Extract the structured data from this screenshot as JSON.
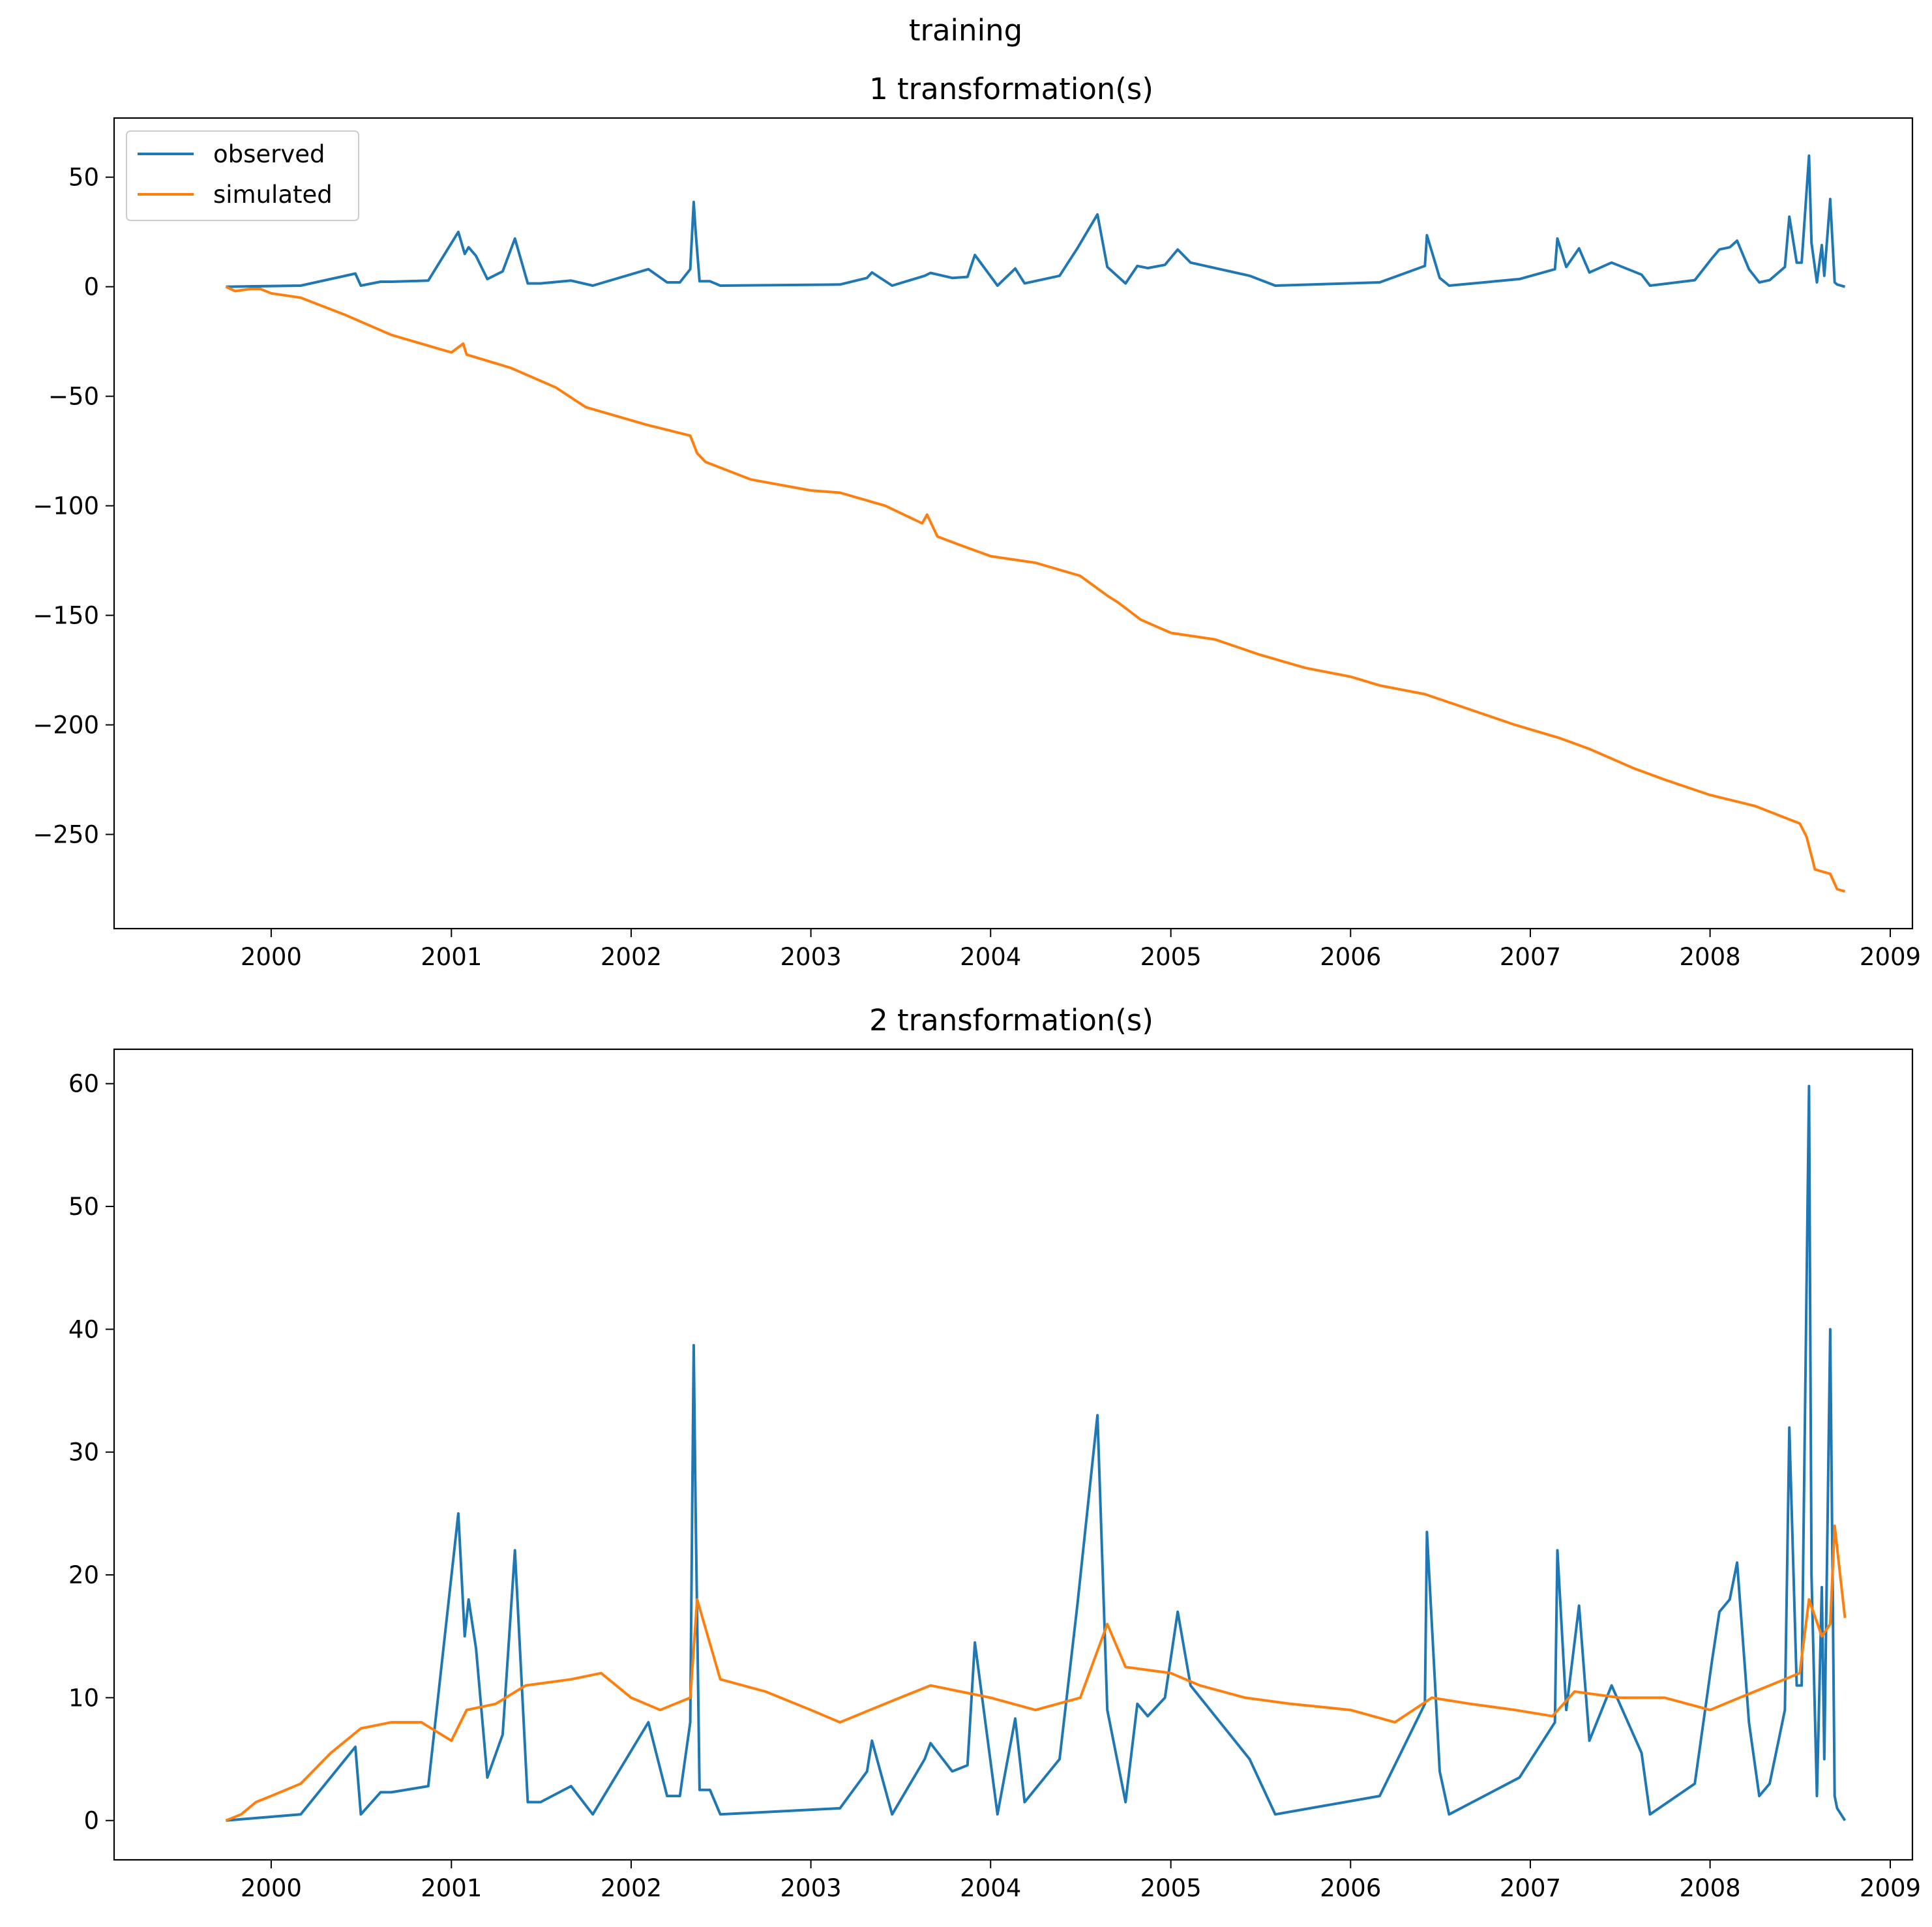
{
  "figure": {
    "suptitle": "training"
  },
  "colors": {
    "observed": "#1f77b4",
    "simulated": "#ff7f0e"
  },
  "chart_data": [
    {
      "type": "line",
      "title": "1 transformation(s)",
      "xlabel": "",
      "ylabel": "",
      "x_ticks": [
        "2000",
        "2001",
        "2002",
        "2003",
        "2004",
        "2005",
        "2006",
        "2007",
        "2008",
        "2009"
      ],
      "y_ticks": [
        "50",
        "0",
        "−50",
        "−100",
        "−150",
        "−200",
        "−250"
      ],
      "xlim": [
        "1999-02-16",
        "2009-02-15"
      ],
      "ylim": [
        -293,
        77
      ],
      "grid": false,
      "legend": {
        "location": "upper-left",
        "entries": [
          "observed",
          "simulated"
        ]
      },
      "series": [
        {
          "name": "observed",
          "color": "#1f77b4",
          "x": [
            "1999-10-01",
            "2000-03-01",
            "2000-06-20",
            "2000-07-01",
            "2000-08-10",
            "2000-09-01",
            "2000-11-15",
            "2001-01-15",
            "2001-01-28",
            "2001-02-05",
            "2001-02-20",
            "2001-03-15",
            "2001-04-15",
            "2001-05-10",
            "2001-06-05",
            "2001-07-01",
            "2001-09-01",
            "2001-10-15",
            "2002-02-05",
            "2002-03-15",
            "2002-04-10",
            "2002-05-01",
            "2002-05-08",
            "2002-05-12",
            "2002-05-20",
            "2002-06-10",
            "2002-07-01",
            "2003-03-01",
            "2003-04-25",
            "2003-05-05",
            "2003-06-15",
            "2003-08-20",
            "2003-09-01",
            "2003-10-15",
            "2003-11-15",
            "2003-11-30",
            "2004-01-15",
            "2004-02-20",
            "2004-03-10",
            "2004-05-20",
            "2004-06-25",
            "2004-08-05",
            "2004-08-25",
            "2004-10-01",
            "2004-10-25",
            "2004-11-15",
            "2004-12-20",
            "2005-01-15",
            "2005-02-10",
            "2005-06-10",
            "2005-08-01",
            "2006-03-01",
            "2006-06-01",
            "2006-06-05",
            "2006-07-01",
            "2006-07-20",
            "2006-12-10",
            "2007-02-20",
            "2007-02-25",
            "2007-03-15",
            "2007-04-10",
            "2007-05-01",
            "2007-06-15",
            "2007-08-15",
            "2007-09-01",
            "2007-12-01",
            "2008-01-05",
            "2008-01-20",
            "2008-02-10",
            "2008-02-25",
            "2008-03-20",
            "2008-04-10",
            "2008-05-01",
            "2008-06-01",
            "2008-06-10",
            "2008-06-25",
            "2008-07-05",
            "2008-07-20",
            "2008-07-25",
            "2008-08-05",
            "2008-08-15",
            "2008-08-20",
            "2008-09-01",
            "2008-09-10",
            "2008-09-15",
            "2008-10-01"
          ],
          "y": [
            0,
            0.5,
            6,
            0.5,
            2.3,
            2.3,
            2.8,
            25,
            15,
            18,
            14,
            3.5,
            7,
            22,
            1.5,
            1.5,
            2.8,
            0.5,
            8,
            2,
            2,
            8,
            38.7,
            25,
            2.5,
            2.5,
            0.5,
            1,
            4,
            6.5,
            0.5,
            5,
            6.3,
            4,
            4.5,
            14.5,
            0.5,
            8.3,
            1.5,
            5,
            17.5,
            33,
            9,
            1.5,
            9.5,
            8.5,
            10,
            17,
            11,
            5,
            0.5,
            2,
            9.5,
            23.5,
            4,
            0.5,
            3.5,
            8,
            22,
            9,
            17.5,
            6.5,
            11,
            5.5,
            0.5,
            3,
            13,
            17,
            18,
            21,
            8,
            2,
            3,
            9,
            32,
            11,
            11,
            59.8,
            20,
            2,
            19,
            5,
            40,
            2,
            1,
            0
          ]
        },
        {
          "name": "simulated",
          "color": "#ff7f0e",
          "x": [
            "1999-10-01",
            "1999-10-20",
            "1999-11-20",
            "1999-12-10",
            "2000-01-01",
            "2000-03-01",
            "2000-06-01",
            "2000-09-01",
            "2001-01-01",
            "2001-01-25",
            "2001-02-01",
            "2001-05-01",
            "2001-08-01",
            "2001-10-01",
            "2002-02-01",
            "2002-05-01",
            "2002-05-15",
            "2002-06-01",
            "2002-09-01",
            "2003-01-01",
            "2003-03-01",
            "2003-06-01",
            "2003-08-15",
            "2003-08-25",
            "2003-09-15",
            "2003-11-01",
            "2004-01-01",
            "2004-04-01",
            "2004-07-01",
            "2004-08-25",
            "2004-09-15",
            "2004-11-01",
            "2005-01-01",
            "2005-04-01",
            "2005-07-01",
            "2005-10-01",
            "2006-01-01",
            "2006-03-01",
            "2006-06-01",
            "2006-09-01",
            "2006-12-01",
            "2007-03-01",
            "2007-05-01",
            "2007-08-01",
            "2007-10-01",
            "2008-01-01",
            "2008-04-01",
            "2008-07-01",
            "2008-07-15",
            "2008-08-01",
            "2008-09-01",
            "2008-09-15",
            "2008-10-01"
          ],
          "y": [
            0,
            -2,
            -1,
            -1,
            -3,
            -5,
            -13,
            -22,
            -30,
            -26,
            -31,
            -37,
            -46,
            -55,
            -63,
            -68,
            -76,
            -80,
            -88,
            -93,
            -94,
            -100,
            -108,
            -104,
            -114,
            -118,
            -123,
            -126,
            -132,
            -141,
            -144,
            -152,
            -158,
            -161,
            -168,
            -174,
            -178,
            -182,
            -186,
            -193,
            -200,
            -206,
            -211,
            -220,
            -225,
            -232,
            -237,
            -245,
            -251,
            -266,
            -268,
            -275,
            -276
          ]
        }
      ]
    },
    {
      "type": "line",
      "title": "2 transformation(s)",
      "xlabel": "",
      "ylabel": "",
      "x_ticks": [
        "2000",
        "2001",
        "2002",
        "2003",
        "2004",
        "2005",
        "2006",
        "2007",
        "2008",
        "2009"
      ],
      "y_ticks": [
        "60",
        "50",
        "40",
        "30",
        "20",
        "10",
        "0"
      ],
      "xlim": [
        "1999-02-16",
        "2009-02-15"
      ],
      "ylim": [
        -3.2,
        62.8
      ],
      "grid": false,
      "legend": null,
      "series": [
        {
          "name": "observed",
          "color": "#1f77b4",
          "x": [
            "1999-10-01",
            "2000-03-01",
            "2000-06-20",
            "2000-07-01",
            "2000-08-10",
            "2000-09-01",
            "2000-11-15",
            "2001-01-15",
            "2001-01-28",
            "2001-02-05",
            "2001-02-20",
            "2001-03-15",
            "2001-04-15",
            "2001-05-10",
            "2001-06-05",
            "2001-07-01",
            "2001-09-01",
            "2001-10-15",
            "2002-02-05",
            "2002-03-15",
            "2002-04-10",
            "2002-05-01",
            "2002-05-08",
            "2002-05-12",
            "2002-05-20",
            "2002-06-10",
            "2002-07-01",
            "2003-03-01",
            "2003-04-25",
            "2003-05-05",
            "2003-06-15",
            "2003-08-20",
            "2003-09-01",
            "2003-10-15",
            "2003-11-15",
            "2003-11-30",
            "2004-01-15",
            "2004-02-20",
            "2004-03-10",
            "2004-05-20",
            "2004-06-25",
            "2004-08-05",
            "2004-08-25",
            "2004-10-01",
            "2004-10-25",
            "2004-11-15",
            "2004-12-20",
            "2005-01-15",
            "2005-02-10",
            "2005-06-10",
            "2005-08-01",
            "2006-03-01",
            "2006-06-01",
            "2006-06-05",
            "2006-07-01",
            "2006-07-20",
            "2006-12-10",
            "2007-02-20",
            "2007-02-25",
            "2007-03-15",
            "2007-04-10",
            "2007-05-01",
            "2007-06-15",
            "2007-08-15",
            "2007-09-01",
            "2007-12-01",
            "2008-01-05",
            "2008-01-20",
            "2008-02-10",
            "2008-02-25",
            "2008-03-20",
            "2008-04-10",
            "2008-05-01",
            "2008-06-01",
            "2008-06-10",
            "2008-06-25",
            "2008-07-05",
            "2008-07-20",
            "2008-07-25",
            "2008-08-05",
            "2008-08-15",
            "2008-08-20",
            "2008-09-01",
            "2008-09-10",
            "2008-09-15",
            "2008-10-01"
          ],
          "y": [
            0,
            0.5,
            6,
            0.5,
            2.3,
            2.3,
            2.8,
            25,
            15,
            18,
            14,
            3.5,
            7,
            22,
            1.5,
            1.5,
            2.8,
            0.5,
            8,
            2,
            2,
            8,
            38.7,
            25,
            2.5,
            2.5,
            0.5,
            1,
            4,
            6.5,
            0.5,
            5,
            6.3,
            4,
            4.5,
            14.5,
            0.5,
            8.3,
            1.5,
            5,
            17.5,
            33,
            9,
            1.5,
            9.5,
            8.5,
            10,
            17,
            11,
            5,
            0.5,
            2,
            9.5,
            23.5,
            4,
            0.5,
            3.5,
            8,
            22,
            9,
            17.5,
            6.5,
            11,
            5.5,
            0.5,
            3,
            13,
            17,
            18,
            21,
            8,
            2,
            3,
            9,
            32,
            11,
            11,
            59.8,
            20,
            2,
            19,
            5,
            40,
            2,
            1,
            0
          ]
        },
        {
          "name": "simulated",
          "color": "#ff7f0e",
          "x": [
            "1999-10-01",
            "1999-11-01",
            "1999-12-01",
            "2000-01-01",
            "2000-03-01",
            "2000-05-01",
            "2000-07-01",
            "2000-09-01",
            "2000-11-01",
            "2001-01-01",
            "2001-02-01",
            "2001-04-01",
            "2001-06-01",
            "2001-09-01",
            "2001-11-01",
            "2002-01-01",
            "2002-03-01",
            "2002-05-01",
            "2002-05-15",
            "2002-07-01",
            "2002-10-01",
            "2003-01-01",
            "2003-03-01",
            "2003-05-01",
            "2003-07-01",
            "2003-09-01",
            "2003-11-01",
            "2004-01-01",
            "2004-04-01",
            "2004-07-01",
            "2004-08-25",
            "2004-10-01",
            "2005-01-01",
            "2005-03-01",
            "2005-06-01",
            "2005-09-01",
            "2006-01-01",
            "2006-04-01",
            "2006-06-15",
            "2006-09-01",
            "2006-12-01",
            "2007-02-15",
            "2007-04-01",
            "2007-07-01",
            "2007-10-01",
            "2008-01-01",
            "2008-03-01",
            "2008-05-01",
            "2008-07-01",
            "2008-07-20",
            "2008-08-15",
            "2008-09-01",
            "2008-09-10",
            "2008-10-01"
          ],
          "y": [
            0,
            0.5,
            1.5,
            2,
            3,
            5.5,
            7.5,
            8,
            8,
            6.5,
            9,
            9.5,
            11,
            11.5,
            12,
            10,
            9,
            10,
            18,
            11.5,
            10.5,
            9,
            8,
            9,
            10,
            11,
            10.5,
            10,
            9,
            10,
            16,
            12.5,
            12,
            11,
            10,
            9.5,
            9,
            8,
            10,
            9.5,
            9,
            8.5,
            10.5,
            10,
            10,
            9,
            10,
            11,
            12,
            18,
            15,
            16,
            24,
            16.5
          ]
        }
      ]
    }
  ]
}
